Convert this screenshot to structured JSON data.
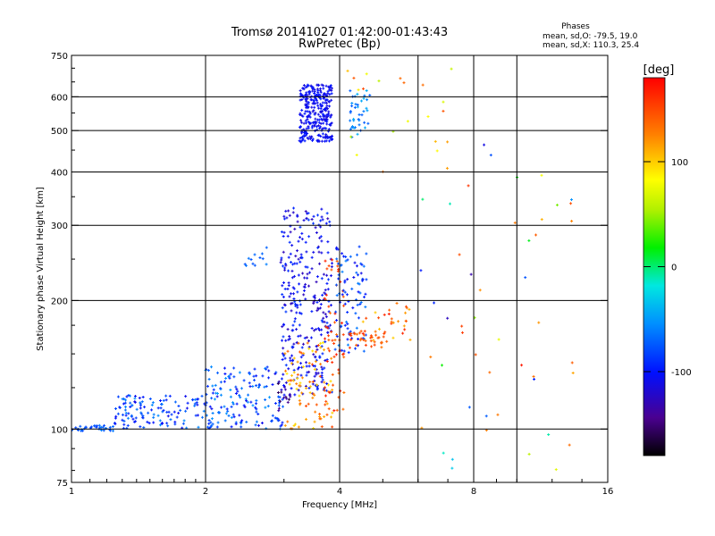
{
  "chart_data": {
    "type": "scatter",
    "title": "Tromsø 20141027 01:42:00-01:43:43",
    "subtitle": "RwPretec (Bp)",
    "xlabel": "Frequency [MHz]",
    "ylabel": "Stationary phase Virtual Height [km]",
    "x_scale": "log",
    "y_scale": "log",
    "xlim": [
      1,
      16
    ],
    "ylim": [
      75,
      750
    ],
    "x_ticks": [
      1,
      2,
      4,
      8,
      16
    ],
    "x_grid": [
      2,
      4,
      6,
      8,
      10
    ],
    "y_ticks": [
      75,
      100,
      200,
      300,
      400,
      500,
      600,
      750
    ],
    "y_grid": [
      100,
      200,
      300,
      400,
      500,
      600
    ],
    "grid": true,
    "phase_info": {
      "title": "Phases",
      "line_o": "mean, sd,O: -79.5, 19.0",
      "line_x": "mean, sd,X: 110.3, 25.4"
    },
    "colorbar": {
      "label": "[deg]",
      "range": [
        -180,
        180
      ],
      "ticks": [
        100,
        0,
        -100
      ],
      "colormap": "rainbow"
    },
    "clusters": [
      {
        "x_range": [
          1.0,
          1.25
        ],
        "y_range": [
          99,
          102
        ],
        "phase_range": [
          -85,
          -60
        ],
        "count": 40
      },
      {
        "x_range": [
          1.25,
          2.1
        ],
        "y_range": [
          100,
          120
        ],
        "phase_range": [
          -110,
          -55
        ],
        "count": 130
      },
      {
        "x_range": [
          2.0,
          3.0
        ],
        "y_range": [
          100,
          140
        ],
        "phase_range": [
          -110,
          -50
        ],
        "count": 150
      },
      {
        "x_range": [
          2.4,
          2.75
        ],
        "y_range": [
          240,
          270
        ],
        "phase_range": [
          -80,
          -60
        ],
        "count": 12
      },
      {
        "x_range": [
          2.9,
          3.1
        ],
        "y_range": [
          110,
          130
        ],
        "phase_range": [
          -160,
          -130
        ],
        "count": 15
      },
      {
        "x_range": [
          2.95,
          3.85
        ],
        "y_range": [
          120,
          330
        ],
        "phase_range": [
          -130,
          -85
        ],
        "count": 320
      },
      {
        "x_range": [
          3.0,
          3.9
        ],
        "y_range": [
          100,
          160
        ],
        "phase_range": [
          90,
          150
        ],
        "count": 90
      },
      {
        "x_range": [
          3.7,
          4.1
        ],
        "y_range": [
          110,
          250
        ],
        "phase_range": [
          130,
          170
        ],
        "count": 60
      },
      {
        "x_range": [
          3.9,
          4.6
        ],
        "y_range": [
          150,
          270
        ],
        "phase_range": [
          -110,
          -60
        ],
        "count": 90
      },
      {
        "x_range": [
          4.2,
          5.1
        ],
        "y_range": [
          155,
          170
        ],
        "phase_range": [
          130,
          160
        ],
        "count": 35
      },
      {
        "x_range": [
          4.5,
          5.8
        ],
        "y_range": [
          160,
          200
        ],
        "phase_range": [
          100,
          170
        ],
        "count": 30
      },
      {
        "x_range": [
          3.25,
          3.85
        ],
        "y_range": [
          470,
          640
        ],
        "phase_range": [
          -115,
          -95
        ],
        "count": 300
      },
      {
        "x_range": [
          4.2,
          4.7
        ],
        "y_range": [
          480,
          620
        ],
        "phase_range": [
          -75,
          -40
        ],
        "count": 40
      },
      {
        "x_range": [
          4.0,
          7.5
        ],
        "y_range": [
          400,
          700
        ],
        "phase_range": [
          50,
          160
        ],
        "count": 20
      },
      {
        "x_range": [
          6.0,
          13.5
        ],
        "y_range": [
          80,
          480
        ],
        "phase_range": [
          -140,
          170
        ],
        "count": 50
      }
    ]
  }
}
